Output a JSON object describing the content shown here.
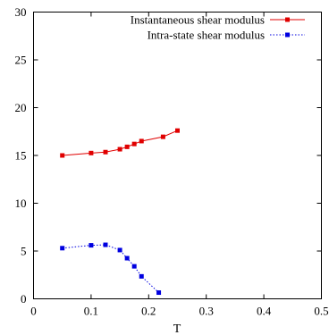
{
  "chart_data": {
    "type": "line",
    "title": "",
    "xlabel": "T",
    "ylabel": "",
    "xlim": [
      0,
      0.5
    ],
    "ylim": [
      0,
      30
    ],
    "x_ticks": [
      "0",
      "0.1",
      "0.2",
      "0.3",
      "0.4",
      "0.5"
    ],
    "y_ticks": [
      "0",
      "5",
      "10",
      "15",
      "20",
      "25",
      "30"
    ],
    "grid": false,
    "legend_position": "top-right",
    "series": [
      {
        "name": "Instantaneous shear modulus",
        "color": "#e00000",
        "line_style": "solid",
        "marker": "square",
        "x": [
          0.05,
          0.1,
          0.125,
          0.15,
          0.1625,
          0.175,
          0.1875,
          0.225,
          0.25
        ],
        "y": [
          15.0,
          15.25,
          15.35,
          15.65,
          15.9,
          16.2,
          16.5,
          16.95,
          17.6
        ]
      },
      {
        "name": "Intra-state shear modulus",
        "color": "#0000e0",
        "line_style": "dotted",
        "marker": "square",
        "x": [
          0.05,
          0.1,
          0.125,
          0.15,
          0.1625,
          0.175,
          0.1875,
          0.2175
        ],
        "y": [
          5.3,
          5.6,
          5.65,
          5.1,
          4.25,
          3.4,
          2.35,
          0.65
        ]
      }
    ]
  }
}
